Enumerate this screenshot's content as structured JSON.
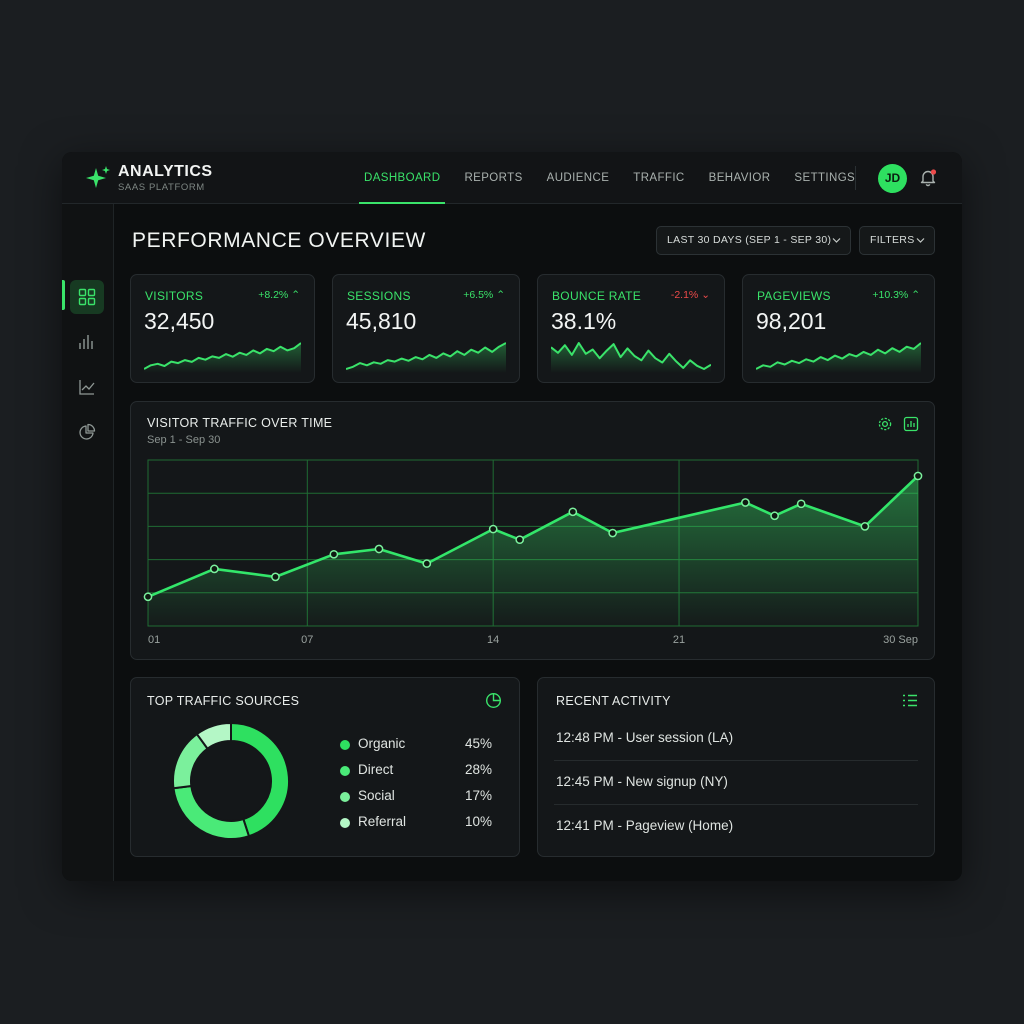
{
  "brand": {
    "title": "ANALYTICS",
    "subtitle": "SAAS PLATFORM"
  },
  "nav": {
    "items": [
      {
        "label": "DASHBOARD",
        "active": true
      },
      {
        "label": "REPORTS",
        "active": false
      },
      {
        "label": "AUDIENCE",
        "active": false
      },
      {
        "label": "TRAFFIC",
        "active": false
      },
      {
        "label": "BEHAVIOR",
        "active": false
      },
      {
        "label": "SETTINGS",
        "active": false
      }
    ]
  },
  "user": {
    "initials": "JD",
    "has_notification": true
  },
  "sidebar": {
    "items": [
      {
        "icon": "grid-icon",
        "active": true
      },
      {
        "icon": "bar-chart-icon",
        "active": false
      },
      {
        "icon": "line-chart-icon",
        "active": false
      },
      {
        "icon": "pie-chart-icon",
        "active": false
      }
    ]
  },
  "page": {
    "title": "PERFORMANCE OVERVIEW",
    "date_range": "LAST 30 DAYS (SEP 1 - SEP 30)",
    "filters": "FILTERS"
  },
  "kpis": [
    {
      "label": "VISITORS",
      "delta": "+8.2%",
      "direction": "up",
      "value": "32,450",
      "spark": [
        2,
        3,
        3.4,
        2.8,
        4,
        3.6,
        4.4,
        3.9,
        5,
        4.5,
        5.4,
        5,
        6,
        5.3,
        6.4,
        5.8,
        7,
        6.2,
        7.4,
        6.8,
        8,
        7,
        7.6,
        9
      ]
    },
    {
      "label": "SESSIONS",
      "delta": "+6.5%",
      "direction": "up",
      "value": "45,810",
      "spark": [
        2,
        2.6,
        3.6,
        3,
        3.8,
        3.4,
        4.4,
        4,
        4.8,
        4.2,
        5.2,
        4.6,
        5.8,
        5,
        6.2,
        5.4,
        6.8,
        5.8,
        7.2,
        6.4,
        7.8,
        6.6,
        8,
        9
      ]
    },
    {
      "label": "BOUNCE RATE",
      "delta": "-2.1%",
      "direction": "down",
      "value": "38.1%",
      "spark": [
        7,
        6,
        7.4,
        5.6,
        7.8,
        5.8,
        6.6,
        5,
        6.4,
        7.6,
        5.2,
        6.8,
        5.4,
        4.6,
        6.4,
        5,
        4.2,
        5.8,
        4.4,
        3.2,
        4.6,
        3.6,
        3,
        3.8
      ]
    },
    {
      "label": "PAGEVIEWS",
      "delta": "+10.3%",
      "direction": "up",
      "value": "98,201",
      "spark": [
        2,
        3,
        2.6,
        3.8,
        3.2,
        4.2,
        3.6,
        4.6,
        4,
        5.2,
        4.4,
        5.6,
        4.8,
        6,
        5.4,
        6.6,
        5.8,
        7.2,
        6.2,
        7.6,
        6.6,
        8,
        7.4,
        9
      ]
    }
  ],
  "traffic_chart": {
    "title": "VISITOR TRAFFIC OVER TIME",
    "subtitle": "Sep 1 - Sep 30",
    "x_tick_labels": [
      "01",
      "07",
      "14",
      "21",
      "30 Sep"
    ]
  },
  "chart_data": {
    "type": "area",
    "title": "VISITOR TRAFFIC OVER TIME",
    "subtitle": "Sep 1 - Sep 30",
    "xlabel": "",
    "ylabel": "",
    "x": [
      1,
      3.5,
      5.8,
      8,
      9.7,
      11.5,
      14,
      15,
      17,
      18.5,
      23.5,
      24.6,
      25.6,
      28,
      30
    ],
    "series": [
      {
        "values": [
          22,
          43,
          37,
          54,
          58,
          47,
          73,
          65,
          86,
          70,
          93,
          83,
          92,
          75,
          113
        ]
      }
    ],
    "xlim": [
      1,
      30
    ],
    "ylim": [
      0,
      125
    ],
    "x_ticks": [
      1,
      7,
      14,
      21,
      30
    ],
    "x_tick_labels": [
      "01",
      "07",
      "14",
      "21",
      "30 Sep"
    ],
    "grid": true,
    "legend": "none"
  },
  "sources": {
    "title": "TOP TRAFFIC SOURCES",
    "items": [
      {
        "name": "Organic",
        "pct": "45%",
        "value": 45,
        "color": "#2ee060"
      },
      {
        "name": "Direct",
        "pct": "28%",
        "value": 28,
        "color": "#4aea78"
      },
      {
        "name": "Social",
        "pct": "17%",
        "value": 17,
        "color": "#7bf09c"
      },
      {
        "name": "Referral",
        "pct": "10%",
        "value": 10,
        "color": "#b4f7c6"
      }
    ]
  },
  "activity": {
    "title": "RECENT ACTIVITY",
    "items": [
      "12:48 PM - User session (LA)",
      "12:45 PM - New signup (NY)",
      "12:41 PM - Pageview (Home)"
    ]
  },
  "colors": {
    "accent": "#3ae36a",
    "negative": "#ec4a4a",
    "background": "#0c0e0f",
    "card": "#141719"
  }
}
